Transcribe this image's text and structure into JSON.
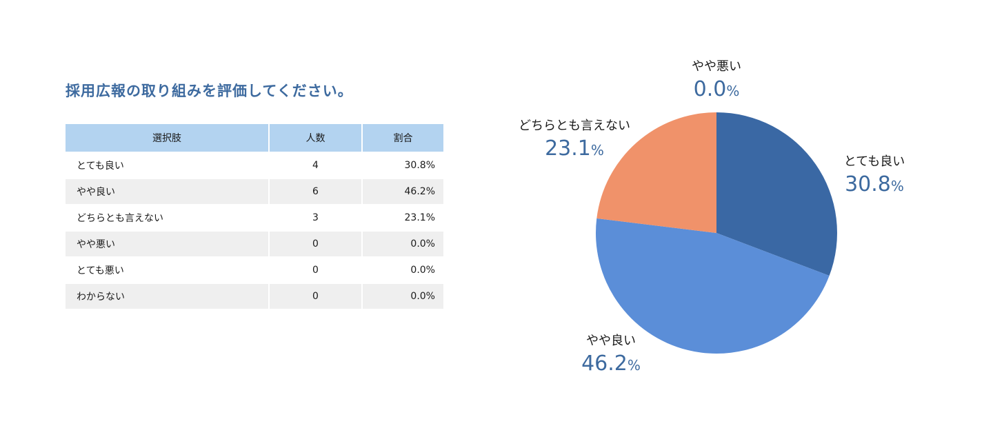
{
  "question": "採用広報の取り組みを評価してください。",
  "table": {
    "headers": [
      "選択肢",
      "人数",
      "割合"
    ],
    "rows": [
      {
        "choice": "とても良い",
        "count": "4",
        "pct": "30.8%"
      },
      {
        "choice": "やや良い",
        "count": "6",
        "pct": "46.2%"
      },
      {
        "choice": "どちらとも言えない",
        "count": "3",
        "pct": "23.1%"
      },
      {
        "choice": "やや悪い",
        "count": "0",
        "pct": "0.0%"
      },
      {
        "choice": "とても悪い",
        "count": "0",
        "pct": "0.0%"
      },
      {
        "choice": "わからない",
        "count": "0",
        "pct": "0.0%"
      }
    ]
  },
  "chart_data": {
    "type": "pie",
    "slices": [
      {
        "label": "とても良い",
        "value": 30.8,
        "display": "30.8",
        "color": "#3a68a4"
      },
      {
        "label": "やや良い",
        "value": 46.2,
        "display": "46.2",
        "color": "#5b8ed8"
      },
      {
        "label": "どちらとも言えない",
        "value": 23.1,
        "display": "23.1",
        "color": "#f0926a"
      },
      {
        "label": "やや悪い",
        "value": 0.0,
        "display": "0.0",
        "color": "#bdbdbd"
      }
    ],
    "unit": "%"
  }
}
